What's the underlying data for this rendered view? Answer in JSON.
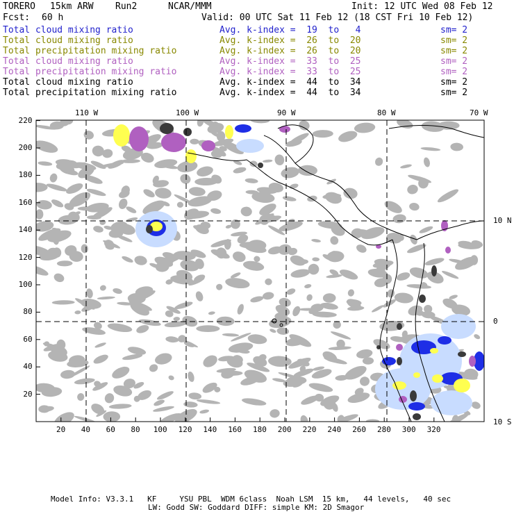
{
  "header": {
    "model": "TORERO",
    "resolution": "15km ARW",
    "run": "Run2",
    "org": "NCAR/MMM",
    "init": "Init: 12 UTC Wed 08 Feb 12",
    "fcst_label": "Fcst:",
    "fcst_value": "60 h",
    "valid": "Valid: 00 UTC Sat 11 Feb 12 (18 CST Fri 10 Feb 12)"
  },
  "legend": [
    {
      "name": "Total cloud mixing ratio",
      "kindex": "Avg. k-index =  19  to   4",
      "sm": "sm= 2",
      "color": "#2222cc"
    },
    {
      "name": "Total cloud mixing ratio",
      "kindex": "Avg. k-index =  26  to  20",
      "sm": "sm= 2",
      "color": "#888800"
    },
    {
      "name": "Total precipitation mixing ratio",
      "kindex": "Avg. k-index =  26  to  20",
      "sm": "sm= 2",
      "color": "#888800"
    },
    {
      "name": "Total cloud mixing ratio",
      "kindex": "Avg. k-index =  33  to  25",
      "sm": "sm= 2",
      "color": "#b060c0"
    },
    {
      "name": "Total precipitation mixing ratio",
      "kindex": "Avg. k-index =  33  to  25",
      "sm": "sm= 2",
      "color": "#b060c0"
    },
    {
      "name": "Total cloud mixing ratio",
      "kindex": "Avg. k-index =  44  to  34",
      "sm": "sm= 2",
      "color": "#000000"
    },
    {
      "name": "Total precipitation mixing ratio",
      "kindex": "Avg. k-index =  44  to  34",
      "sm": "sm= 2",
      "color": "#000000"
    }
  ],
  "map": {
    "longitude_labels": [
      "110 W",
      "100 W",
      "90 W",
      "80 W",
      "70 W"
    ],
    "latitude_labels": [
      "10 N",
      "0",
      "10 S"
    ],
    "x_ticks": [
      "20",
      "40",
      "60",
      "80",
      "100",
      "120",
      "140",
      "160",
      "180",
      "200",
      "220",
      "240",
      "260",
      "280",
      "300",
      "320"
    ],
    "y_ticks": [
      "220",
      "200",
      "180",
      "160",
      "140",
      "120",
      "100",
      "80",
      "60",
      "40",
      "20"
    ],
    "colors": {
      "cloud_gray": "#b4b4b4",
      "dark": "#3a3a3a",
      "blue": "#1e2ee6",
      "light_blue": "#c8dcff",
      "yellow": "#ffff50",
      "purple": "#b060c0"
    }
  },
  "footer": {
    "line1": "Model Info: V3.3.1   KF     YSU PBL  WDM 6class  Noah LSM  15 km,   44 levels,   40 sec",
    "line2": "LW: Godd SW: Goddard DIFF: simple KM: 2D Smagor"
  }
}
